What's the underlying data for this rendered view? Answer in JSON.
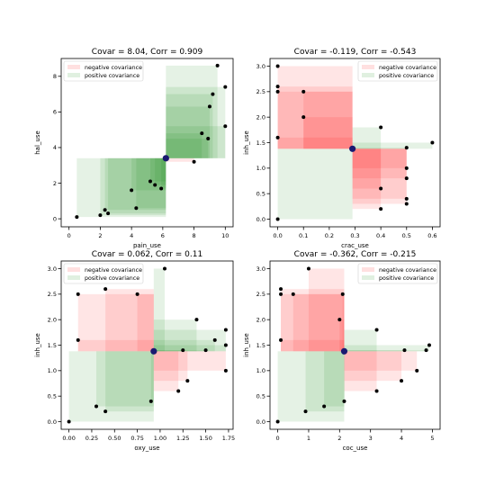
{
  "chart_data": [
    {
      "type": "scatter",
      "title": "Covar = 8.04, Corr = 0.909",
      "xlabel": "pain_use",
      "ylabel": "hal_use",
      "xlim": [
        -0.5,
        10.5
      ],
      "ylim": [
        -0.45,
        9.0
      ],
      "xticks": [
        0,
        2,
        4,
        6,
        8,
        10
      ],
      "yticks": [
        0,
        2,
        4,
        6,
        8
      ],
      "tick_labels_x": [
        "0",
        "2",
        "4",
        "6",
        "8",
        "10"
      ],
      "tick_labels_y": [
        "0",
        "2",
        "4",
        "6",
        "8"
      ],
      "legend": [
        "negative covariance",
        "positive covariance"
      ],
      "legend_position": "upper-left",
      "mean": {
        "x": 6.2,
        "y": 3.4
      },
      "points": [
        {
          "x": 0.5,
          "y": 0.1
        },
        {
          "x": 2.0,
          "y": 0.2
        },
        {
          "x": 2.3,
          "y": 0.5
        },
        {
          "x": 2.5,
          "y": 0.3
        },
        {
          "x": 4.0,
          "y": 1.6
        },
        {
          "x": 4.3,
          "y": 0.6
        },
        {
          "x": 5.2,
          "y": 2.1
        },
        {
          "x": 5.5,
          "y": 1.9
        },
        {
          "x": 5.9,
          "y": 1.7
        },
        {
          "x": 8.0,
          "y": 3.2
        },
        {
          "x": 8.5,
          "y": 4.8
        },
        {
          "x": 8.9,
          "y": 4.5
        },
        {
          "x": 9.0,
          "y": 6.3
        },
        {
          "x": 9.2,
          "y": 7.0
        },
        {
          "x": 9.5,
          "y": 8.6
        },
        {
          "x": 10.0,
          "y": 5.2
        },
        {
          "x": 10.0,
          "y": 7.4
        }
      ]
    },
    {
      "type": "scatter",
      "title": "Covar = -0.119, Corr = -0.543",
      "xlabel": "crac_use",
      "ylabel": "inh_use",
      "xlim": [
        -0.03,
        0.63
      ],
      "ylim": [
        -0.15,
        3.15
      ],
      "xticks": [
        0.0,
        0.1,
        0.2,
        0.3,
        0.4,
        0.5,
        0.6
      ],
      "yticks": [
        0.0,
        0.5,
        1.0,
        1.5,
        2.0,
        2.5,
        3.0
      ],
      "tick_labels_x": [
        "0.0",
        "0.1",
        "0.2",
        "0.3",
        "0.4",
        "0.5",
        "0.6"
      ],
      "tick_labels_y": [
        "0.0",
        "0.5",
        "1.0",
        "1.5",
        "2.0",
        "2.5",
        "3.0"
      ],
      "legend": [
        "negative covariance",
        "positive covariance"
      ],
      "legend_position": "upper-right",
      "mean": {
        "x": 0.29,
        "y": 1.38
      },
      "points": [
        {
          "x": 0.0,
          "y": 3.0
        },
        {
          "x": 0.0,
          "y": 2.6
        },
        {
          "x": 0.0,
          "y": 2.5
        },
        {
          "x": 0.0,
          "y": 1.6
        },
        {
          "x": 0.0,
          "y": 0.0
        },
        {
          "x": 0.1,
          "y": 2.5
        },
        {
          "x": 0.1,
          "y": 2.0
        },
        {
          "x": 0.4,
          "y": 1.8
        },
        {
          "x": 0.4,
          "y": 0.6
        },
        {
          "x": 0.4,
          "y": 0.2
        },
        {
          "x": 0.5,
          "y": 1.4
        },
        {
          "x": 0.5,
          "y": 1.0
        },
        {
          "x": 0.5,
          "y": 0.8
        },
        {
          "x": 0.5,
          "y": 0.4
        },
        {
          "x": 0.5,
          "y": 0.3
        },
        {
          "x": 0.6,
          "y": 1.5
        }
      ]
    },
    {
      "type": "scatter",
      "title": "Covar = 0.062, Corr = 0.11",
      "xlabel": "oxy_use",
      "ylabel": "inh_use",
      "xlim": [
        -0.085,
        1.8
      ],
      "ylim": [
        -0.15,
        3.15
      ],
      "xticks": [
        0.0,
        0.25,
        0.5,
        0.75,
        1.0,
        1.25,
        1.5,
        1.75
      ],
      "yticks": [
        0.0,
        0.5,
        1.0,
        1.5,
        2.0,
        2.5,
        3.0
      ],
      "tick_labels_x": [
        "0.00",
        "0.25",
        "0.50",
        "0.75",
        "1.00",
        "1.25",
        "1.50",
        "1.75"
      ],
      "tick_labels_y": [
        "0.0",
        "0.5",
        "1.0",
        "1.5",
        "2.0",
        "2.5",
        "3.0"
      ],
      "legend": [
        "negative covariance",
        "positive covariance"
      ],
      "legend_position": "upper-left",
      "mean": {
        "x": 0.93,
        "y": 1.38
      },
      "points": [
        {
          "x": 0.0,
          "y": 0.0
        },
        {
          "x": 0.1,
          "y": 1.6
        },
        {
          "x": 0.1,
          "y": 2.5
        },
        {
          "x": 0.3,
          "y": 0.3
        },
        {
          "x": 0.4,
          "y": 2.6
        },
        {
          "x": 0.4,
          "y": 0.2
        },
        {
          "x": 0.75,
          "y": 2.5
        },
        {
          "x": 0.9,
          "y": 0.4
        },
        {
          "x": 1.05,
          "y": 3.0
        },
        {
          "x": 1.2,
          "y": 0.6
        },
        {
          "x": 1.25,
          "y": 1.4
        },
        {
          "x": 1.3,
          "y": 0.8
        },
        {
          "x": 1.4,
          "y": 2.0
        },
        {
          "x": 1.5,
          "y": 1.4
        },
        {
          "x": 1.6,
          "y": 1.6
        },
        {
          "x": 1.72,
          "y": 1.8
        },
        {
          "x": 1.72,
          "y": 1.5
        },
        {
          "x": 1.72,
          "y": 1.0
        }
      ]
    },
    {
      "type": "scatter",
      "title": "Covar = -0.362, Corr = -0.215",
      "xlabel": "coc_use",
      "ylabel": "inh_use",
      "xlim": [
        -0.25,
        5.25
      ],
      "ylim": [
        -0.15,
        3.15
      ],
      "xticks": [
        0,
        1,
        2,
        3,
        4,
        5
      ],
      "yticks": [
        0.0,
        0.5,
        1.0,
        1.5,
        2.0,
        2.5,
        3.0
      ],
      "tick_labels_x": [
        "0",
        "1",
        "2",
        "3",
        "4",
        "5"
      ],
      "tick_labels_y": [
        "0.0",
        "0.5",
        "1.0",
        "1.5",
        "2.0",
        "2.5",
        "3.0"
      ],
      "legend": [
        "negative covariance",
        "positive covariance"
      ],
      "legend_position": "upper-right",
      "mean": {
        "x": 2.15,
        "y": 1.38
      },
      "points": [
        {
          "x": 0.0,
          "y": 0.0
        },
        {
          "x": 0.1,
          "y": 2.6
        },
        {
          "x": 0.1,
          "y": 2.5
        },
        {
          "x": 0.1,
          "y": 1.6
        },
        {
          "x": 0.5,
          "y": 2.5
        },
        {
          "x": 0.9,
          "y": 0.2
        },
        {
          "x": 1.0,
          "y": 3.0
        },
        {
          "x": 1.5,
          "y": 0.3
        },
        {
          "x": 2.0,
          "y": 2.0
        },
        {
          "x": 2.1,
          "y": 2.5
        },
        {
          "x": 2.15,
          "y": 0.4
        },
        {
          "x": 3.2,
          "y": 1.8
        },
        {
          "x": 3.2,
          "y": 0.6
        },
        {
          "x": 4.0,
          "y": 0.8
        },
        {
          "x": 4.1,
          "y": 1.4
        },
        {
          "x": 4.5,
          "y": 1.0
        },
        {
          "x": 4.8,
          "y": 1.4
        },
        {
          "x": 4.9,
          "y": 1.5
        }
      ]
    }
  ],
  "colors": {
    "negative": "#ff0000",
    "positive": "#008000",
    "point": "#000000",
    "mean_point": "#191970"
  }
}
